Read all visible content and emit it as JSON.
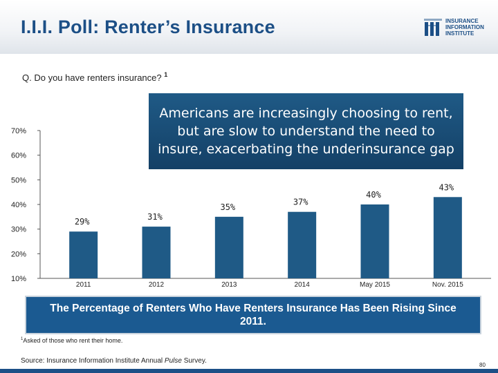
{
  "header": {
    "title": "I.I.I. Poll: Renter’s Insurance",
    "logo_lines": [
      "INSURANCE",
      "INFORMATION",
      "INSTITUTE"
    ]
  },
  "question": {
    "text": "Q. Do you have renters insurance?",
    "footnote_marker": "1"
  },
  "callout": {
    "text": "Americans are increasingly choosing to rent, but are slow to understand the need to insure, exacerbating the underinsurance gap"
  },
  "banner": {
    "text": "The Percentage of Renters Who Have Renters Insurance Has Been Rising Since 2011."
  },
  "footnote": {
    "marker": "1",
    "text": "Asked of those who rent their home."
  },
  "source": {
    "prefix": "Source: Insurance Information Institute Annual ",
    "italic": "Pulse",
    "suffix": " Survey."
  },
  "page_number": "80",
  "colors": {
    "title": "#1c4f86",
    "bar": "#1f5a86",
    "callout": "#1a4d75",
    "banner": "#1b5a91"
  },
  "chart_data": {
    "type": "bar",
    "categories": [
      "2011",
      "2012",
      "2013",
      "2014",
      "May 2015",
      "Nov. 2015"
    ],
    "values": [
      29,
      31,
      35,
      37,
      40,
      43
    ],
    "value_labels": [
      "29%",
      "31%",
      "35%",
      "37%",
      "40%",
      "43%"
    ],
    "yticks": [
      10,
      20,
      30,
      40,
      50,
      60,
      70
    ],
    "ytick_labels": [
      "10%",
      "20%",
      "30%",
      "40%",
      "50%",
      "60%",
      "70%"
    ],
    "ylim": [
      10,
      70
    ],
    "title": "",
    "xlabel": "",
    "ylabel": "",
    "grid": false,
    "legend": "none"
  }
}
